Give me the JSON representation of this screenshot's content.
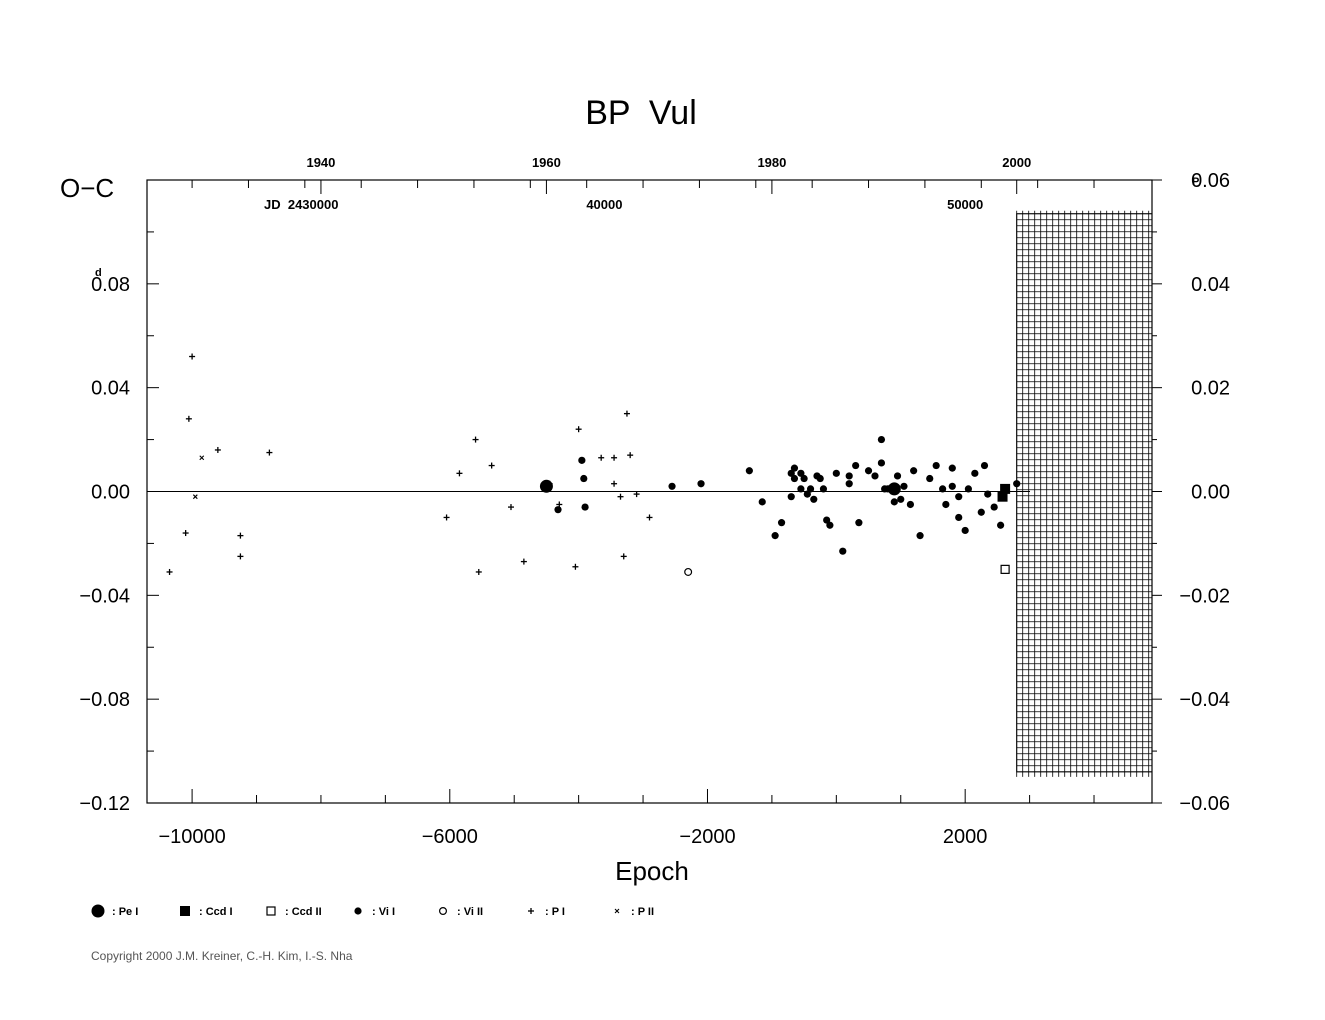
{
  "chart_data": {
    "type": "scatter",
    "title": "BP  Vul",
    "ylabel": "O−C",
    "ylabel_unit": "d",
    "right_unit": "P",
    "xlabel": "Epoch",
    "xlim": [
      -10700,
      4900
    ],
    "ylim": [
      -0.12,
      0.12
    ],
    "right_ylim": [
      -0.06,
      0.06
    ],
    "grid": false,
    "x_ticks": [
      -10000,
      -6000,
      -2000,
      2000
    ],
    "x_tick_labels": [
      "−10000",
      "−6000",
      "−2000",
      "2000"
    ],
    "y_ticks": [
      0.08,
      0.04,
      0.0,
      -0.04,
      -0.08,
      -0.12
    ],
    "y_tick_labels": [
      "0.08",
      "0.04",
      "0.00",
      "−0.04",
      "−0.08",
      "−0.12"
    ],
    "right_ticks": [
      0.06,
      0.04,
      0.02,
      0.0,
      -0.02,
      -0.04,
      -0.06
    ],
    "right_tick_labels": [
      "0.06",
      "0.04",
      "0.02",
      "0.00",
      "−0.02",
      "−0.04",
      "−0.06"
    ],
    "top_year_ticks": [
      {
        "epoch": -8000,
        "label": "1940"
      },
      {
        "epoch": -4500,
        "label": "1960"
      },
      {
        "epoch": -1000,
        "label": "1980"
      },
      {
        "epoch": 2800,
        "label": "2000"
      }
    ],
    "jd_label": "JD  2430000",
    "jd_ticks": [
      {
        "epoch": -3600,
        "label": "40000"
      },
      {
        "epoch": 2000,
        "label": "50000"
      }
    ],
    "future_region": {
      "x_start": 2800,
      "x_end": 4900,
      "y_bottom": -0.108,
      "y_top": 0.107
    },
    "reference_line": 0.0,
    "legend": [
      {
        "symbol": "big-dot",
        "label": ": Pe I"
      },
      {
        "symbol": "filled-square",
        "label": ": Ccd I"
      },
      {
        "symbol": "open-square",
        "label": ": Ccd II"
      },
      {
        "symbol": "dot",
        "label": ": Vi I"
      },
      {
        "symbol": "open-circle",
        "label": ": Vi II"
      },
      {
        "symbol": "plus",
        "label": ": P I"
      },
      {
        "symbol": "cross",
        "label": ": P II"
      }
    ],
    "series": [
      {
        "name": "Pe I",
        "symbol": "big-dot",
        "x": [
          -4500,
          900
        ],
        "y": [
          0.002,
          0.001
        ]
      },
      {
        "name": "Ccd I",
        "symbol": "filled-square",
        "x": [
          2580,
          2620
        ],
        "y": [
          -0.002,
          0.001
        ]
      },
      {
        "name": "Ccd II",
        "symbol": "open-square",
        "x": [
          2620
        ],
        "y": [
          -0.03
        ]
      },
      {
        "name": "Vi I",
        "symbol": "dot",
        "x": [
          -3950,
          -3920,
          -3900,
          -4320,
          -2550,
          -2100,
          -1350,
          -1150,
          -950,
          -850,
          -700,
          -700,
          -650,
          -650,
          -550,
          -550,
          -500,
          -450,
          -400,
          -350,
          -300,
          -250,
          -200,
          -150,
          -100,
          0,
          100,
          200,
          200,
          300,
          350,
          500,
          600,
          700,
          700,
          750,
          800,
          900,
          950,
          1000,
          1050,
          1150,
          1200,
          1300,
          1450,
          1550,
          1650,
          1700,
          1800,
          1800,
          1900,
          1900,
          2000,
          2050,
          2150,
          2250,
          2300,
          2350,
          2450,
          2550,
          2800
        ],
        "y": [
          0.012,
          0.005,
          -0.006,
          -0.007,
          0.002,
          0.003,
          0.008,
          -0.004,
          -0.017,
          -0.012,
          0.007,
          -0.002,
          0.005,
          0.009,
          0.007,
          0.001,
          0.005,
          -0.001,
          0.001,
          -0.003,
          0.006,
          0.005,
          0.001,
          -0.011,
          -0.013,
          0.007,
          -0.023,
          0.006,
          0.003,
          0.01,
          -0.012,
          0.008,
          0.006,
          0.011,
          0.02,
          0.001,
          0.001,
          -0.004,
          0.006,
          -0.003,
          0.002,
          -0.005,
          0.008,
          -0.017,
          0.005,
          0.01,
          0.001,
          -0.005,
          0.002,
          0.009,
          -0.002,
          -0.01,
          -0.015,
          0.001,
          0.007,
          -0.008,
          0.01,
          -0.001,
          -0.006,
          -0.013,
          0.003
        ]
      },
      {
        "name": "Vi II",
        "symbol": "open-circle",
        "x": [
          -2300
        ],
        "y": [
          -0.031
        ]
      },
      {
        "name": "P I",
        "symbol": "plus",
        "x": [
          -10000,
          -10050,
          -9600,
          -10100,
          -8800,
          -9250,
          -9250,
          -10350,
          -6050,
          -5850,
          -5600,
          -5550,
          -5350,
          -5050,
          -4850,
          -4450,
          -4300,
          -4050,
          -4000,
          -3650,
          -3450,
          -3450,
          -3350,
          -3300,
          -3250,
          -3200,
          -3100,
          -2900
        ],
        "y": [
          0.052,
          0.028,
          0.016,
          -0.016,
          0.015,
          -0.017,
          -0.025,
          -0.031,
          -0.01,
          0.007,
          0.02,
          -0.031,
          0.01,
          -0.006,
          -0.027,
          0.003,
          -0.005,
          -0.029,
          0.024,
          0.013,
          0.003,
          0.013,
          -0.002,
          -0.025,
          0.03,
          0.014,
          -0.001,
          -0.01
        ]
      },
      {
        "name": "P II",
        "symbol": "cross",
        "x": [
          -9850,
          -9950
        ],
        "y": [
          0.013,
          -0.002
        ]
      }
    ]
  },
  "copyright": "Copyright 2000 J.M. Kreiner, C.-H. Kim, I.-S. Nha"
}
